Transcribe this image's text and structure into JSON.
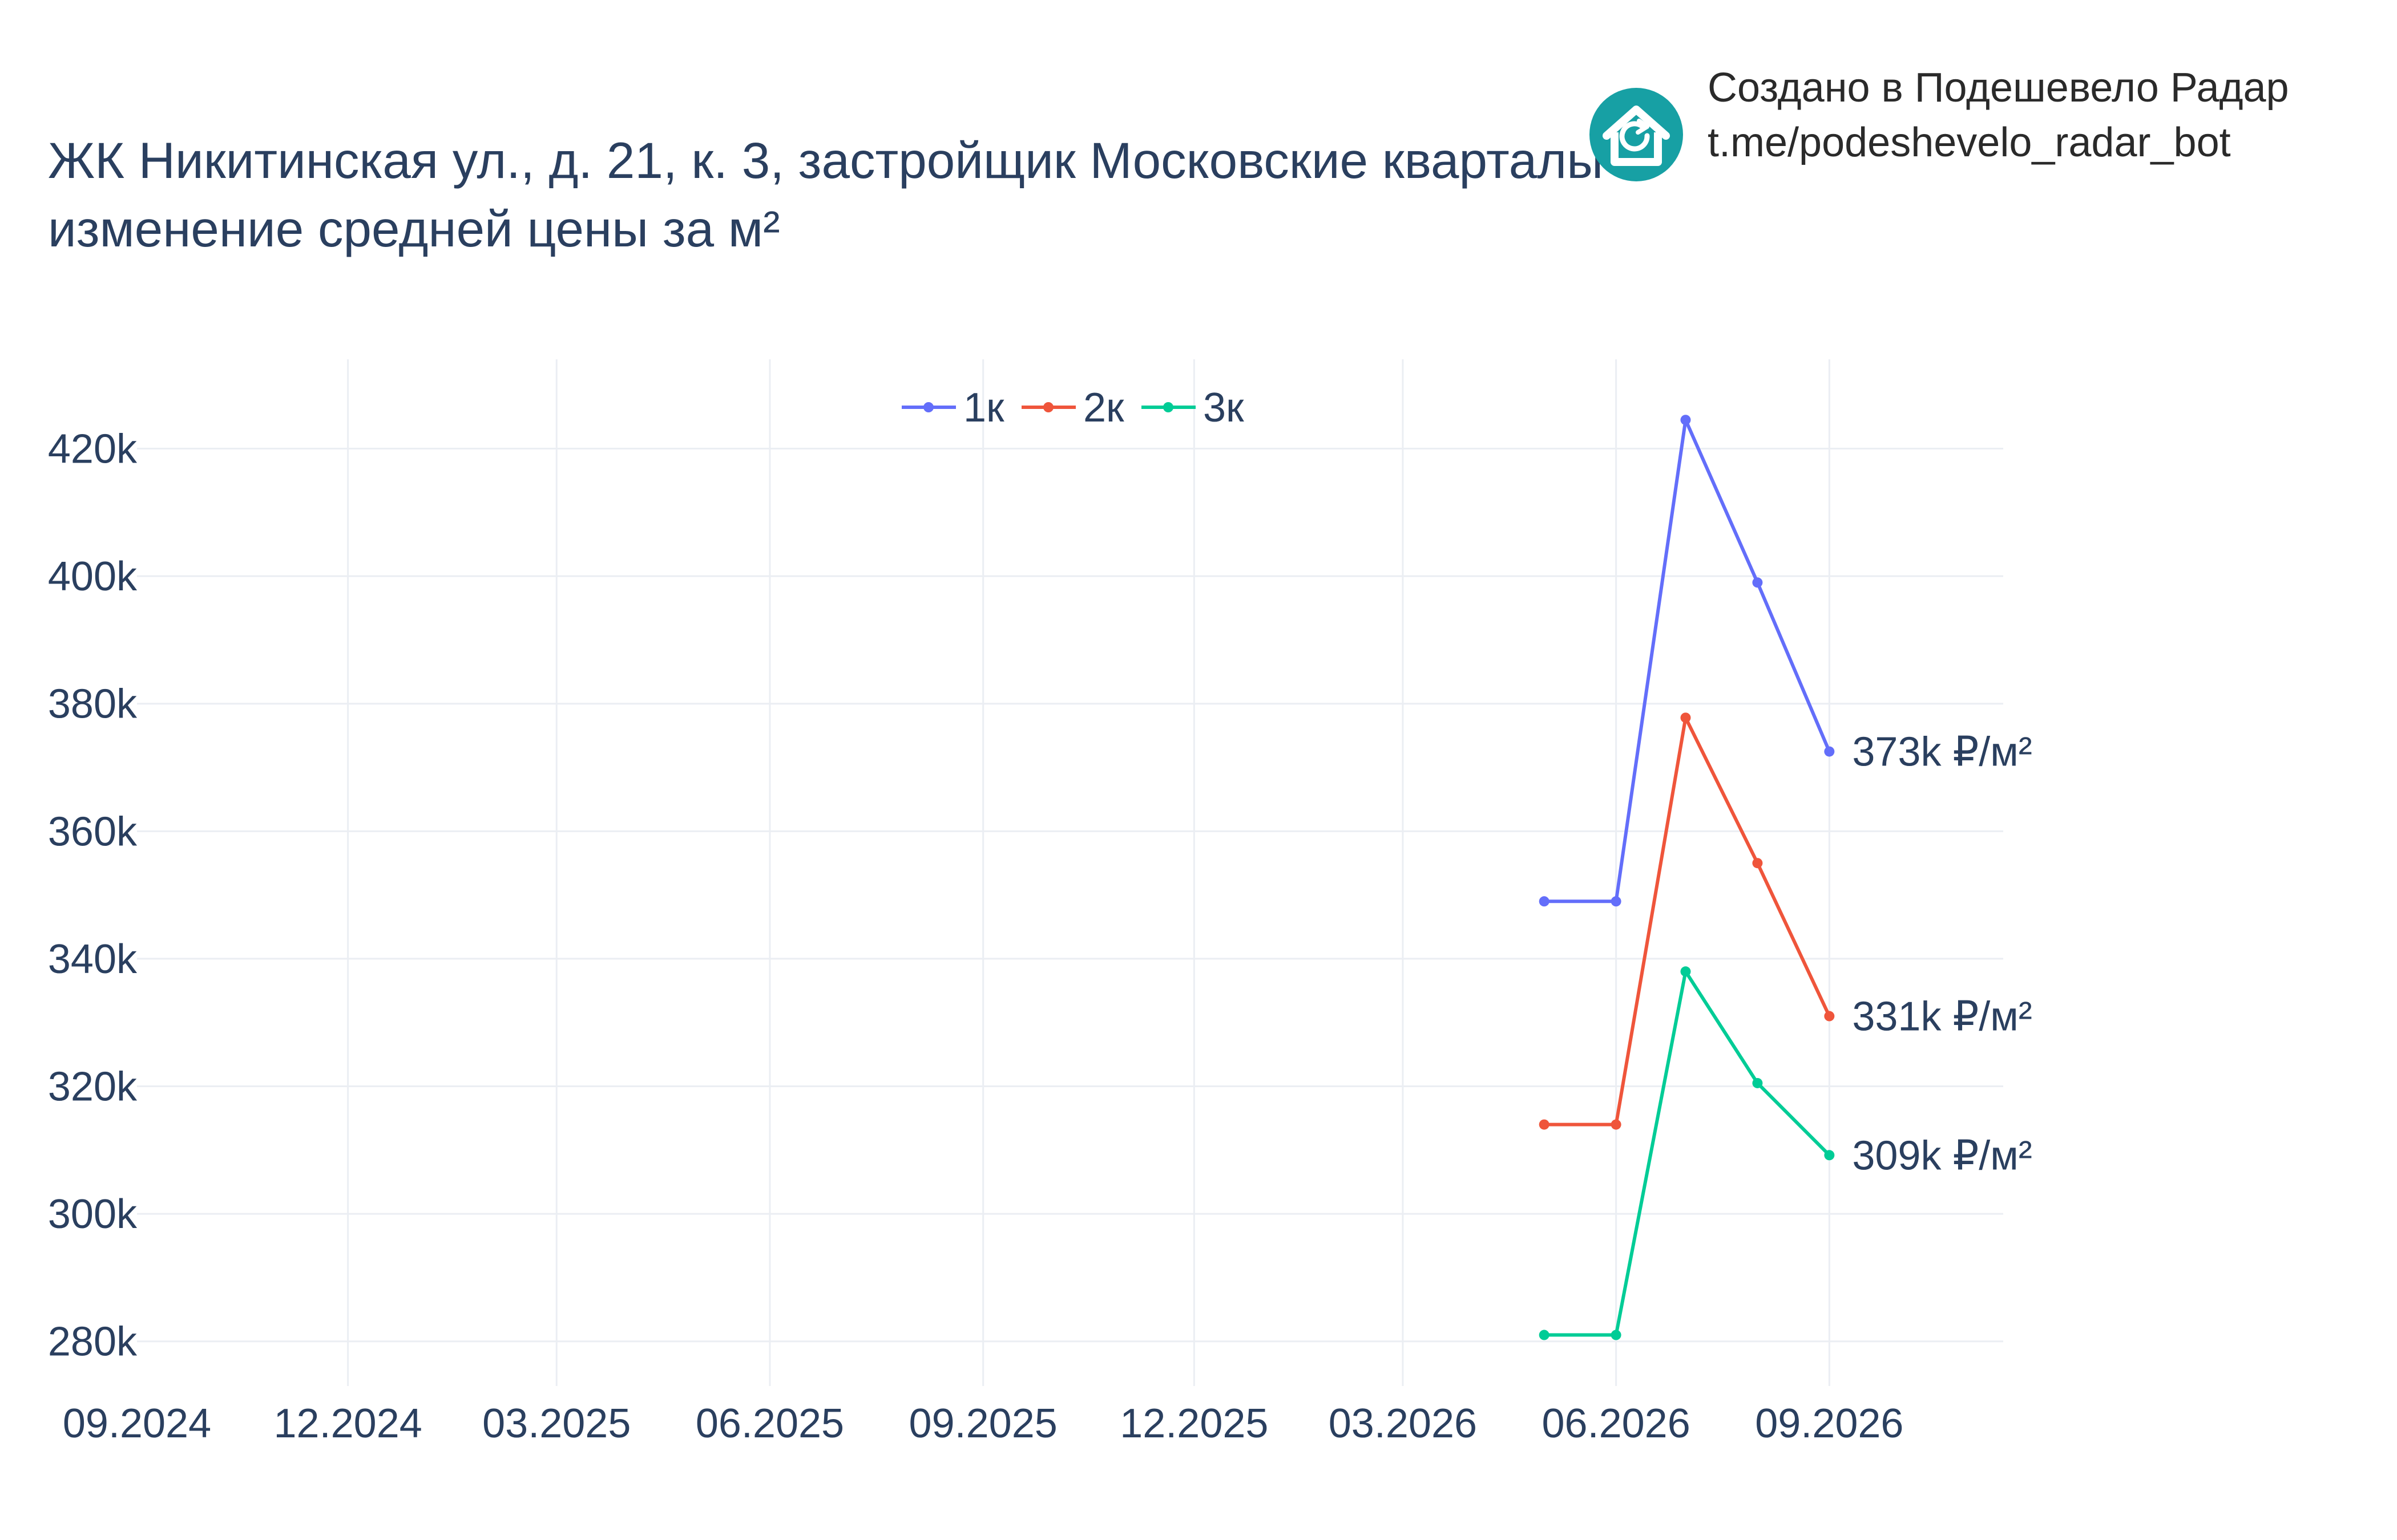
{
  "chart_data": {
    "type": "line",
    "title": "ЖК Никитинская ул., д. 21, к. 3, застройщик Московские кварталы",
    "subtitle": "изменение средней цены за м²",
    "xlabel": "",
    "ylabel": "",
    "x_ticks": [
      "09.2024",
      "12.2024",
      "03.2025",
      "06.2025",
      "09.2025",
      "12.2025",
      "03.2026",
      "06.2026",
      "09.2026"
    ],
    "x_tick_dates": [
      "2024-09-01",
      "2024-12-01",
      "2025-03-01",
      "2025-06-01",
      "2025-09-01",
      "2025-12-01",
      "2026-03-01",
      "2026-06-01",
      "2026-09-01"
    ],
    "xlim": [
      "2024-09-01",
      "2026-11-15"
    ],
    "y_ticks": [
      280000,
      300000,
      320000,
      340000,
      360000,
      380000,
      400000,
      420000
    ],
    "y_tick_labels": [
      "280k",
      "300k",
      "320k",
      "340k",
      "360k",
      "380k",
      "400k",
      "420k"
    ],
    "ylim": [
      273000,
      434000
    ],
    "grid": true,
    "legend_position": "top-center",
    "x": [
      "2026-05-01",
      "2026-06-01",
      "2026-07-01",
      "2026-08-01",
      "2026-09-01"
    ],
    "series": [
      {
        "name": "1к",
        "color": "#636efa",
        "values": [
          349000,
          349000,
          424500,
          399000,
          372500
        ],
        "end_label": "373k ₽/м²"
      },
      {
        "name": "2к",
        "color": "#ef553b",
        "values": [
          314000,
          314000,
          377800,
          355000,
          331000
        ],
        "end_label": "331k ₽/м²"
      },
      {
        "name": "3к",
        "color": "#00cc96",
        "values": [
          281000,
          281000,
          338000,
          320500,
          309200
        ],
        "end_label": "309k ₽/м²"
      }
    ]
  },
  "branding": {
    "logo_icon": "house-refresh-icon",
    "logo_color": "#17a0a4",
    "line1": "Создано в Подешевело Радар",
    "line2": "t.me/podeshevelo_radar_bot"
  }
}
